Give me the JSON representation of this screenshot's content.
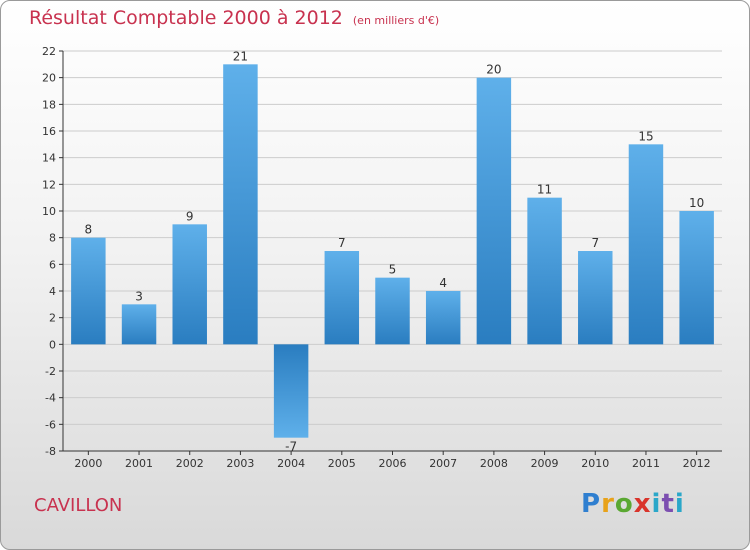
{
  "title": "Résultat Comptable 2000 à 2012",
  "unit": "(en milliers d'€)",
  "town": "CAVILLON",
  "brand": "Proxiti",
  "colors": {
    "bar_light": "#5aabe6",
    "bar_dark": "#2a7dc0",
    "title": "#c8324f",
    "grid": "#cccccc",
    "axis": "#333333"
  },
  "chart_data": {
    "type": "bar",
    "title": "Résultat Comptable 2000 à 2012",
    "subtitle": "(en milliers d'€)",
    "xlabel": "",
    "ylabel": "",
    "categories": [
      "2000",
      "2001",
      "2002",
      "2003",
      "2004",
      "2005",
      "2006",
      "2007",
      "2008",
      "2009",
      "2010",
      "2011",
      "2012"
    ],
    "values": [
      8,
      3,
      9,
      21,
      -7,
      7,
      5,
      4,
      20,
      11,
      7,
      15,
      10
    ],
    "ylim": [
      -8,
      22
    ],
    "yticks": [
      -8,
      -6,
      -4,
      -2,
      0,
      2,
      4,
      6,
      8,
      10,
      12,
      14,
      16,
      18,
      20,
      22
    ],
    "grid": true,
    "legend": "none"
  }
}
